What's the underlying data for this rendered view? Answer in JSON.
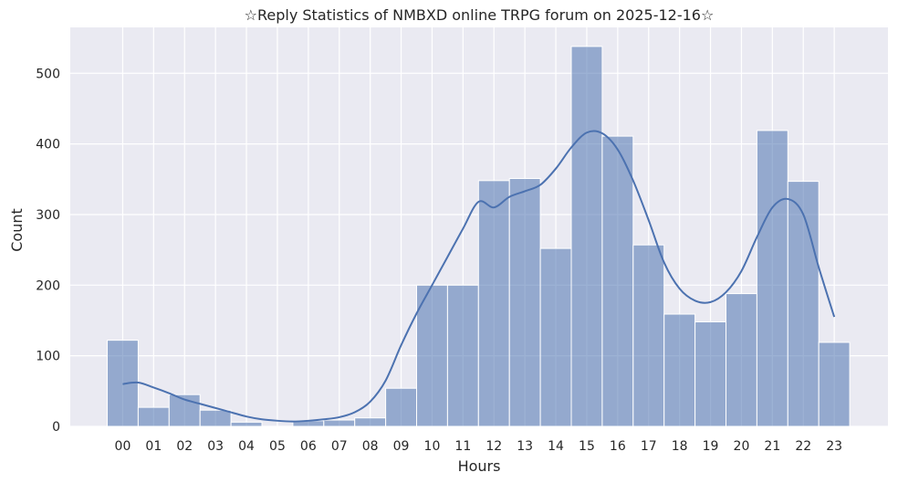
{
  "chart_data": {
    "type": "bar",
    "title": "☆Reply Statistics of NMBXD online TRPG forum on 2025-12-16☆",
    "xlabel": "Hours",
    "ylabel": "Count",
    "categories": [
      "00",
      "01",
      "02",
      "03",
      "04",
      "05",
      "06",
      "07",
      "08",
      "09",
      "10",
      "11",
      "12",
      "13",
      "14",
      "15",
      "16",
      "17",
      "18",
      "19",
      "20",
      "21",
      "22",
      "23"
    ],
    "values": [
      122,
      27,
      45,
      23,
      6,
      0,
      8,
      9,
      12,
      54,
      200,
      200,
      348,
      351,
      252,
      538,
      411,
      257,
      159,
      148,
      188,
      419,
      347,
      119
    ],
    "y_ticks": [
      "0",
      "100",
      "200",
      "300",
      "400",
      "500"
    ],
    "ylim": [
      0,
      565
    ],
    "kde_line": {
      "x": [
        0,
        0.5,
        1,
        1.5,
        2,
        2.5,
        3,
        3.5,
        4,
        4.5,
        5,
        5.5,
        6,
        6.5,
        7,
        7.5,
        8,
        8.5,
        9,
        9.5,
        10,
        10.5,
        11,
        11.5,
        12,
        12.5,
        13,
        13.5,
        14,
        14.5,
        15,
        15.5,
        16,
        16.5,
        17,
        17.5,
        18,
        18.5,
        19,
        19.5,
        20,
        20.5,
        21,
        21.5,
        22,
        22.5,
        23
      ],
      "y": [
        60,
        62,
        55,
        47,
        38,
        32,
        26,
        20,
        14,
        10,
        8,
        7,
        8,
        10,
        13,
        20,
        35,
        65,
        115,
        160,
        200,
        240,
        280,
        318,
        310,
        325,
        333,
        342,
        365,
        395,
        416,
        415,
        392,
        348,
        292,
        232,
        195,
        178,
        176,
        190,
        220,
        268,
        310,
        322,
        300,
        225,
        155
      ]
    },
    "bar_color": "#4c72b0",
    "line_color": "#4c72b0",
    "background_color": "#eaeaf2",
    "grid": true
  }
}
